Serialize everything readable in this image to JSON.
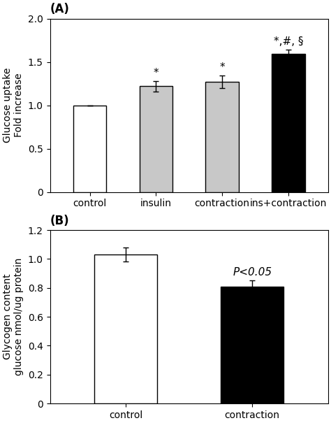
{
  "chart_data": [
    {
      "type": "bar",
      "title": "(A)",
      "categories": [
        "control",
        "insulin",
        "contraction",
        "ins+contraction"
      ],
      "values": [
        1.0,
        1.22,
        1.27,
        1.59
      ],
      "errors": [
        0.0,
        0.06,
        0.07,
        0.05
      ],
      "colors": [
        "#ffffff",
        "#c8c8c8",
        "#c8c8c8",
        "#000000"
      ],
      "ylabel": "Glucose uptake\nFold increase",
      "ylim": [
        0,
        2.0
      ],
      "yticks": [
        0,
        0.5,
        1.0,
        1.5,
        2.0
      ],
      "annotations": [
        {
          "category": "insulin",
          "text": "*"
        },
        {
          "category": "contraction",
          "text": "*"
        },
        {
          "category": "ins+contraction",
          "text": "*,#, §"
        }
      ]
    },
    {
      "type": "bar",
      "title": "(B)",
      "categories": [
        "control",
        "contraction"
      ],
      "values": [
        1.03,
        0.81
      ],
      "errors": [
        0.05,
        0.04
      ],
      "colors": [
        "#ffffff",
        "#000000"
      ],
      "ylabel": "Glycogen content\nglucose nmol/ug protein",
      "ylim": [
        0,
        1.2
      ],
      "yticks": [
        0,
        0.2,
        0.4,
        0.6,
        0.8,
        1.0,
        1.2
      ],
      "annotations": [
        {
          "category": "contraction",
          "text": "P<0.05",
          "style": "italic"
        }
      ]
    }
  ]
}
